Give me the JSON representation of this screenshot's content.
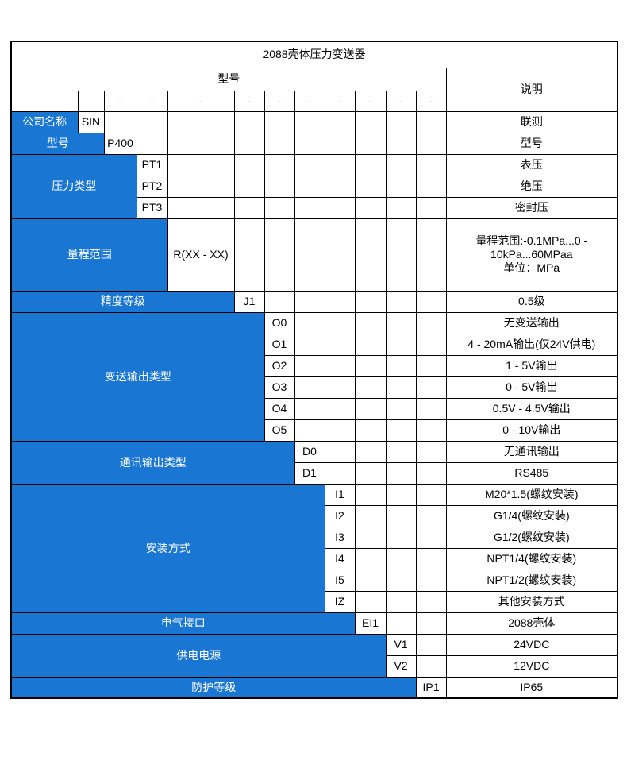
{
  "title": "2088壳体压力变送器",
  "header": {
    "model_label": "型号",
    "desc_label": "说明",
    "separator": "-"
  },
  "colors": {
    "accent_blue": "#1976d2",
    "border": "#000000",
    "label_text": "#ffffff",
    "body_text": "#000000",
    "background": "#ffffff"
  },
  "sections": [
    {
      "label": "公司名称",
      "label_span": 1,
      "rows": [
        {
          "code": "SIN",
          "desc": "联测"
        }
      ]
    },
    {
      "label": "型号",
      "label_span": 2,
      "rows": [
        {
          "code": "P400",
          "desc": "型号"
        }
      ]
    },
    {
      "label": "压力类型",
      "label_span": 3,
      "rows": [
        {
          "code": "PT1",
          "desc": "表压"
        },
        {
          "code": "PT2",
          "desc": "绝压"
        },
        {
          "code": "PT3",
          "desc": "密封压"
        }
      ]
    },
    {
      "label": "量程范围",
      "label_span": 4,
      "rows": [
        {
          "code": "R(XX - XX)",
          "desc": "量程范围:-0.1MPa...0 -\n10kPa...60MPaa\n单位：MPa",
          "tall": true
        }
      ]
    },
    {
      "label": "精度等级",
      "label_span": 5,
      "rows": [
        {
          "code": "J1",
          "desc": "0.5级"
        }
      ]
    },
    {
      "label": "变送输出类型",
      "label_span": 6,
      "rows": [
        {
          "code": "O0",
          "desc": "无变送输出"
        },
        {
          "code": "O1",
          "desc": "4 - 20mA输出(仅24V供电)"
        },
        {
          "code": "O2",
          "desc": "1 - 5V输出"
        },
        {
          "code": "O3",
          "desc": "0 - 5V输出"
        },
        {
          "code": "O4",
          "desc": "0.5V - 4.5V输出"
        },
        {
          "code": "O5",
          "desc": "0 - 10V输出"
        }
      ]
    },
    {
      "label": "通讯输出类型",
      "label_span": 7,
      "rows": [
        {
          "code": "D0",
          "desc": "无通讯输出"
        },
        {
          "code": "D1",
          "desc": "RS485"
        }
      ]
    },
    {
      "label": "安装方式",
      "label_span": 8,
      "rows": [
        {
          "code": "I1",
          "desc": "M20*1.5(螺纹安装)"
        },
        {
          "code": "I2",
          "desc": "G1/4(螺纹安装)"
        },
        {
          "code": "I3",
          "desc": "G1/2(螺纹安装)"
        },
        {
          "code": "I4",
          "desc": "NPT1/4(螺纹安装)"
        },
        {
          "code": "I5",
          "desc": "NPT1/2(螺纹安装)"
        },
        {
          "code": "IZ",
          "desc": "其他安装方式"
        }
      ]
    },
    {
      "label": "电气接口",
      "label_span": 9,
      "rows": [
        {
          "code": "EI1",
          "desc": "2088壳体"
        }
      ]
    },
    {
      "label": "供电电源",
      "label_span": 10,
      "rows": [
        {
          "code": "V1",
          "desc": "24VDC"
        },
        {
          "code": "V2",
          "desc": "12VDC"
        }
      ]
    },
    {
      "label": "防护等级",
      "label_span": 11,
      "rows": [
        {
          "code": "IP1",
          "desc": "IP65"
        }
      ]
    }
  ]
}
